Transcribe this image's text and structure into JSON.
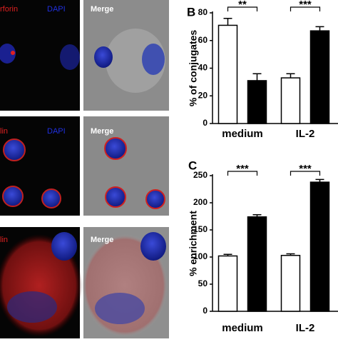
{
  "images": {
    "rows": [
      {
        "labels": [
          "rforin",
          "DAPI"
        ],
        "merge": "Merge"
      },
      {
        "labels": [
          "lin",
          "DAPI"
        ],
        "merge": "Merge"
      },
      {
        "labels": [
          "lin"
        ],
        "merge": "Merge"
      }
    ]
  },
  "chart_data": [
    {
      "type": "bar",
      "panel": "B",
      "y_label": "% of conjugates",
      "categories": [
        "medium",
        "IL-2"
      ],
      "series": [
        {
          "color": "#ffffff",
          "values": [
            71,
            33
          ],
          "errors": [
            5,
            3
          ]
        },
        {
          "color": "#000000",
          "values": [
            31,
            67
          ],
          "errors": [
            5,
            3
          ]
        }
      ],
      "annotations": [
        "**",
        "***"
      ],
      "ylim": [
        0,
        80
      ],
      "yticks": [
        0,
        20,
        40,
        60,
        80
      ]
    },
    {
      "type": "bar",
      "panel": "C",
      "y_label": "% enrichment",
      "categories": [
        "medium",
        "IL-2"
      ],
      "series": [
        {
          "color": "#ffffff",
          "values": [
            102,
            103
          ],
          "errors": [
            3,
            3
          ]
        },
        {
          "color": "#000000",
          "values": [
            174,
            238
          ],
          "errors": [
            4,
            5
          ]
        }
      ],
      "annotations": [
        "***",
        "***"
      ],
      "ylim": [
        0,
        250
      ],
      "yticks": [
        0,
        50,
        100,
        150,
        200,
        250
      ]
    }
  ]
}
